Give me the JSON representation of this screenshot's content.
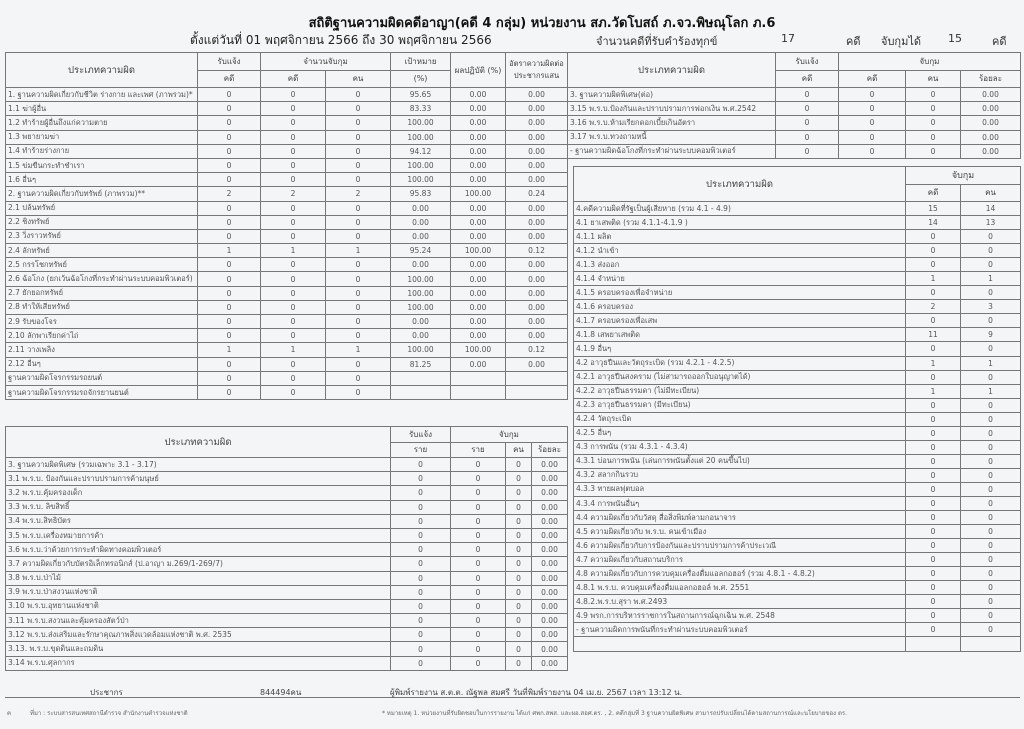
{
  "header": {
    "title": "สถิติฐานความผิดคดีอาญา(คดี 4 กลุ่ม) หน่วยงาน สภ.วัดโบสถ์ ภ.จว.พิษณุโลก ภ.6",
    "subtitle": "ตั้งแต่วันที่ 01 พฤศจิกายน 2566 ถึง 30 พฤศจิกายน 2566",
    "complaints_label": "จำนวนคดีที่รับคำร้องทุกข์",
    "complaints_value": "17",
    "unit_case": "คดี",
    "arrested_label": "จับกุมได้",
    "arrested_value": "15"
  },
  "table1": {
    "headers": {
      "type": "ประเภทความผิด",
      "reported": "รับแจ้ง",
      "arrest_count": "จำนวนจับกุม",
      "target": "เป้าหมาย",
      "result": "ผลปฏิบัติ (%)",
      "rate": "อัตราความผิดต่อประชากรแสน",
      "case": "คดี",
      "case2": "คดี",
      "person": "คน",
      "percent": "(%)"
    },
    "rows": [
      [
        "1. ฐานความผิดเกี่ยวกับชีวิต ร่างกาย และเพศ (ภาพรวม)*",
        "0",
        "0",
        "0",
        "95.65",
        "0.00",
        "0.00"
      ],
      [
        "1.1 ฆ่าผู้อื่น",
        "0",
        "0",
        "0",
        "83.33",
        "0.00",
        "0.00"
      ],
      [
        "1.2 ทำร้ายผู้อื่นถึงแก่ความตาย",
        "0",
        "0",
        "0",
        "100.00",
        "0.00",
        "0.00"
      ],
      [
        "1.3 พยายามฆ่า",
        "0",
        "0",
        "0",
        "100.00",
        "0.00",
        "0.00"
      ],
      [
        "1.4 ทำร้ายร่างกาย",
        "0",
        "0",
        "0",
        "94.12",
        "0.00",
        "0.00"
      ],
      [
        "1.5 ข่มขืนกระทำชำเรา",
        "0",
        "0",
        "0",
        "100.00",
        "0.00",
        "0.00"
      ],
      [
        "1.6 อื่นๆ",
        "0",
        "0",
        "0",
        "100.00",
        "0.00",
        "0.00"
      ],
      [
        "2. ฐานความผิดเกี่ยวกับทรัพย์ (ภาพรวม)**",
        "2",
        "2",
        "2",
        "95.83",
        "100.00",
        "0.24"
      ],
      [
        "2.1 ปล้นทรัพย์",
        "0",
        "0",
        "0",
        "0.00",
        "0.00",
        "0.00"
      ],
      [
        "2.2 ชิงทรัพย์",
        "0",
        "0",
        "0",
        "0.00",
        "0.00",
        "0.00"
      ],
      [
        "2.3 วิ่งราวทรัพย์",
        "0",
        "0",
        "0",
        "0.00",
        "0.00",
        "0.00"
      ],
      [
        "2.4 ลักทรัพย์",
        "1",
        "1",
        "1",
        "95.24",
        "100.00",
        "0.12"
      ],
      [
        "2.5 กรรโชกทรัพย์",
        "0",
        "0",
        "0",
        "0.00",
        "0.00",
        "0.00"
      ],
      [
        "2.6 ฉ้อโกง (ยกเว้นฉ้อโกงที่กระทำผ่านระบบคอมพิวเตอร์)",
        "0",
        "0",
        "0",
        "100.00",
        "0.00",
        "0.00"
      ],
      [
        "2.7 ยักยอกทรัพย์",
        "0",
        "0",
        "0",
        "100.00",
        "0.00",
        "0.00"
      ],
      [
        "2.8 ทำให้เสียทรัพย์",
        "0",
        "0",
        "0",
        "100.00",
        "0.00",
        "0.00"
      ],
      [
        "2.9 รับของโจร",
        "0",
        "0",
        "0",
        "0.00",
        "0.00",
        "0.00"
      ],
      [
        "2.10 ลักพาเรียกค่าไถ่",
        "0",
        "0",
        "0",
        "0.00",
        "0.00",
        "0.00"
      ],
      [
        "2.11 วางเพลิง",
        "1",
        "1",
        "1",
        "100.00",
        "100.00",
        "0.12"
      ],
      [
        "2.12 อื่นๆ",
        "0",
        "0",
        "0",
        "81.25",
        "0.00",
        "0.00"
      ],
      [
        "ฐานความผิดโจรกรรมรถยนต์",
        "0",
        "0",
        "0",
        "",
        "",
        ""
      ],
      [
        "ฐานความผิดโจรกรรมรถจักรยานยนต์",
        "0",
        "0",
        "0",
        "",
        "",
        ""
      ]
    ]
  },
  "table2": {
    "headers": {
      "type": "ประเภทความผิด",
      "reported": "รับแจ้ง",
      "arrest": "จับกุม",
      "case_r": "ราย",
      "case_a": "ราย",
      "person": "คน",
      "percent": "ร้อยละ"
    },
    "rows": [
      [
        "3. ฐานความผิดพิเศษ (รวมเฉพาะ 3.1 - 3.17)",
        "0",
        "0",
        "0",
        "0.00"
      ],
      [
        "3.1 พ.ร.บ. ป้องกันและปราบปรามการค้ามนุษย์",
        "0",
        "0",
        "0",
        "0.00"
      ],
      [
        "3.2 พ.ร.บ.คุ้มครองเด็ก",
        "0",
        "0",
        "0",
        "0.00"
      ],
      [
        "3.3 พ.ร.บ. ลิขสิทธิ์",
        "0",
        "0",
        "0",
        "0.00"
      ],
      [
        "3.4 พ.ร.บ.สิทธิบัตร",
        "0",
        "0",
        "0",
        "0.00"
      ],
      [
        "3.5 พ.ร.บ.เครื่องหมายการค้า",
        "0",
        "0",
        "0",
        "0.00"
      ],
      [
        "3.6 พ.ร.บ.ว่าด้วยการกระทำผิดทางคอมพิวเตอร์",
        "0",
        "0",
        "0",
        "0.00"
      ],
      [
        "3.7 ความผิดเกี่ยวกับบัตรอิเล็กทรอนิกส์  (ป.อาญา ม.269/1-269/7)",
        "0",
        "0",
        "0",
        "0.00"
      ],
      [
        "3.8 พ.ร.บ.ป่าไม้",
        "0",
        "0",
        "0",
        "0.00"
      ],
      [
        "3.9 พ.ร.บ.ป่าสงวนแห่งชาติ",
        "0",
        "0",
        "0",
        "0.00"
      ],
      [
        "3.10 พ.ร.บ.อุทยานแห่งชาติ",
        "0",
        "0",
        "0",
        "0.00"
      ],
      [
        "3.11 พ.ร.บ.สงวนและคุ้มครองสัตว์ป่า",
        "0",
        "0",
        "0",
        "0.00"
      ],
      [
        "3.12 พ.ร.บ.ส่งเสริมและรักษาคุณภาพสิ่งแวดล้อมแห่งชาติ พ.ศ. 2535",
        "0",
        "0",
        "0",
        "0.00"
      ],
      [
        "3.13. พ.ร.บ.ขุดดินและถมดิน",
        "0",
        "0",
        "0",
        "0.00"
      ],
      [
        "3.14 พ.ร.บ.ศุลกากร",
        "0",
        "0",
        "0",
        "0.00"
      ]
    ]
  },
  "table3": {
    "headers": {
      "type": "ประเภทความผิด",
      "reported": "รับแจ้ง",
      "arrest": "จับกุม",
      "case_r": "คดี",
      "case_a": "คดี",
      "person": "คน",
      "percent": "ร้อยละ"
    },
    "rows": [
      [
        "3. ฐานความผิดพิเศษ(ต่อ)",
        "0",
        "0",
        "0",
        "0.00"
      ],
      [
        "3.15 พ.ร.บ.ป้องกันและปราบปรามการฟอกเงิน พ.ศ.2542",
        "0",
        "0",
        "0",
        "0.00"
      ],
      [
        "3.16 พ.ร.บ.ห้ามเรียกดอกเบี้ยเกินอัตรา",
        "0",
        "0",
        "0",
        "0.00"
      ],
      [
        "3.17 พ.ร.บ.ทวงถามหนี้",
        "0",
        "0",
        "0",
        "0.00"
      ],
      [
        "- ฐานความผิดฉ้อโกงที่กระทำผ่านระบบคอมพิวเตอร์",
        "0",
        "0",
        "0",
        "0.00"
      ]
    ]
  },
  "table4": {
    "headers": {
      "type": "ประเภทความผิด",
      "arrest": "จับกุม",
      "case": "คดี",
      "person": "คน"
    },
    "rows": [
      [
        "4.คดีความผิดที่รัฐเป็นผู้เสียหาย (รวม 4.1 - 4.9)",
        "15",
        "14"
      ],
      [
        "4.1 ยาเสพติด (รวม 4.1.1-4.1.9 )",
        "14",
        "13"
      ],
      [
        "4.1.1 ผลิต",
        "0",
        "0"
      ],
      [
        "4.1.2 นำเข้า",
        "0",
        "0"
      ],
      [
        "4.1.3 ส่งออก",
        "0",
        "0"
      ],
      [
        "4.1.4 จำหน่าย",
        "1",
        "1"
      ],
      [
        "4.1.5 ครอบครองเพื่อจำหน่าย",
        "0",
        "0"
      ],
      [
        "4.1.6 ครอบครอง",
        "2",
        "3"
      ],
      [
        "4.1.7 ครอบครองเพื่อเสพ",
        "0",
        "0"
      ],
      [
        "4.1.8 เสพยาเสพติด",
        "11",
        "9"
      ],
      [
        "4.1.9 อื่นๆ",
        "0",
        "0"
      ],
      [
        "4.2 อาวุธปืนและวัตถุระเบิด (รวม 4.2.1 - 4.2.5)",
        "1",
        "1"
      ],
      [
        "4.2.1 อาวุธปืนสงคราม (ไม่สามารถออกใบอนุญาตได้)",
        "0",
        "0"
      ],
      [
        "4.2.2 อาวุธปืนธรรมดา (ไม่มีทะเบียน)",
        "1",
        "1"
      ],
      [
        "4.2.3 อาวุธปืนธรรมดา (มีทะเบียน)",
        "0",
        "0"
      ],
      [
        "4.2.4 วัตถุระเบิด",
        "0",
        "0"
      ],
      [
        "4.2.5 อื่นๆ",
        "0",
        "0"
      ],
      [
        "4.3 การพนัน (รวม 4.3.1 - 4.3.4)",
        "0",
        "0"
      ],
      [
        "4.3.1 บ่อนการพนัน (เล่นการพนันตั้งแต่ 20 คนขึ้นไป)",
        "0",
        "0"
      ],
      [
        "4.3.2 สลากกินรวบ",
        "0",
        "0"
      ],
      [
        "4.3.3 ทายผลฟุตบอล",
        "0",
        "0"
      ],
      [
        "4.3.4 การพนันอื่นๆ",
        "0",
        "0"
      ],
      [
        "4.4 ความผิดเกี่ยวกับวัสดุ สื่อสิ่งพิมพ์ลามกอนาจาร",
        "0",
        "0"
      ],
      [
        "4.5 ความผิดเกี่ยวกับ พ.ร.บ. คนเข้าเมือง",
        "0",
        "0"
      ],
      [
        "4.6 ความผิดเกี่ยวกับการป้องกันและปราบปรามการค้าประเวณี",
        "0",
        "0"
      ],
      [
        "4.7 ความผิดเกี่ยวกับสถานบริการ",
        "0",
        "0"
      ],
      [
        "4.8 ความผิดเกี่ยวกับการควบคุมเครื่องดื่มแอลกอฮอร์ (รวม 4.8.1 - 4.8.2)",
        "0",
        "0"
      ],
      [
        "4.8.1 พ.ร.บ. ควบคุมเครื่องดื่มแอลกอฮอล์ พ.ศ. 2551",
        "0",
        "0"
      ],
      [
        "4.8.2.พ.ร.บ.สุรา พ.ศ.2493",
        "0",
        "0"
      ],
      [
        "4.9 พรก.การบริหารราชการในสถานการณ์ฉุกเฉิน พ.ศ. 2548",
        "0",
        "0"
      ],
      [
        "- ฐานความผิดการพนันที่กระทำผ่านระบบคอมพิวเตอร์",
        "0",
        "0"
      ],
      [
        "",
        "",
        ""
      ]
    ]
  },
  "footer": {
    "population_label": "ประชากร",
    "population_value": "844494คน",
    "printed_by": "ผู้พิมพ์รายงาน ส.ต.ต. ณัฐพล สมศรี วันที่พิมพ์รายงาน 04 เม.ย. 2567  เวลา 13:12 น.",
    "page_mark": "ฅ",
    "source": "ที่มา : ระบบสารสนเทศสถานีตำรวจ  สำนักงานตำรวจแห่งชาติ",
    "remark": "* หมายเหตุ   1. หน่วยงานที่รับผิดชอบในการรายงาน ได้แก่ ศพก.สพส. และผอ.สอศ.ตร. , 2. คดีกลุ่มที่ 3 ฐานความผิดพิเศษ สามารถปรับเปลี่ยนได้ตามสถานการณ์และนโยบายของ ตร."
  }
}
